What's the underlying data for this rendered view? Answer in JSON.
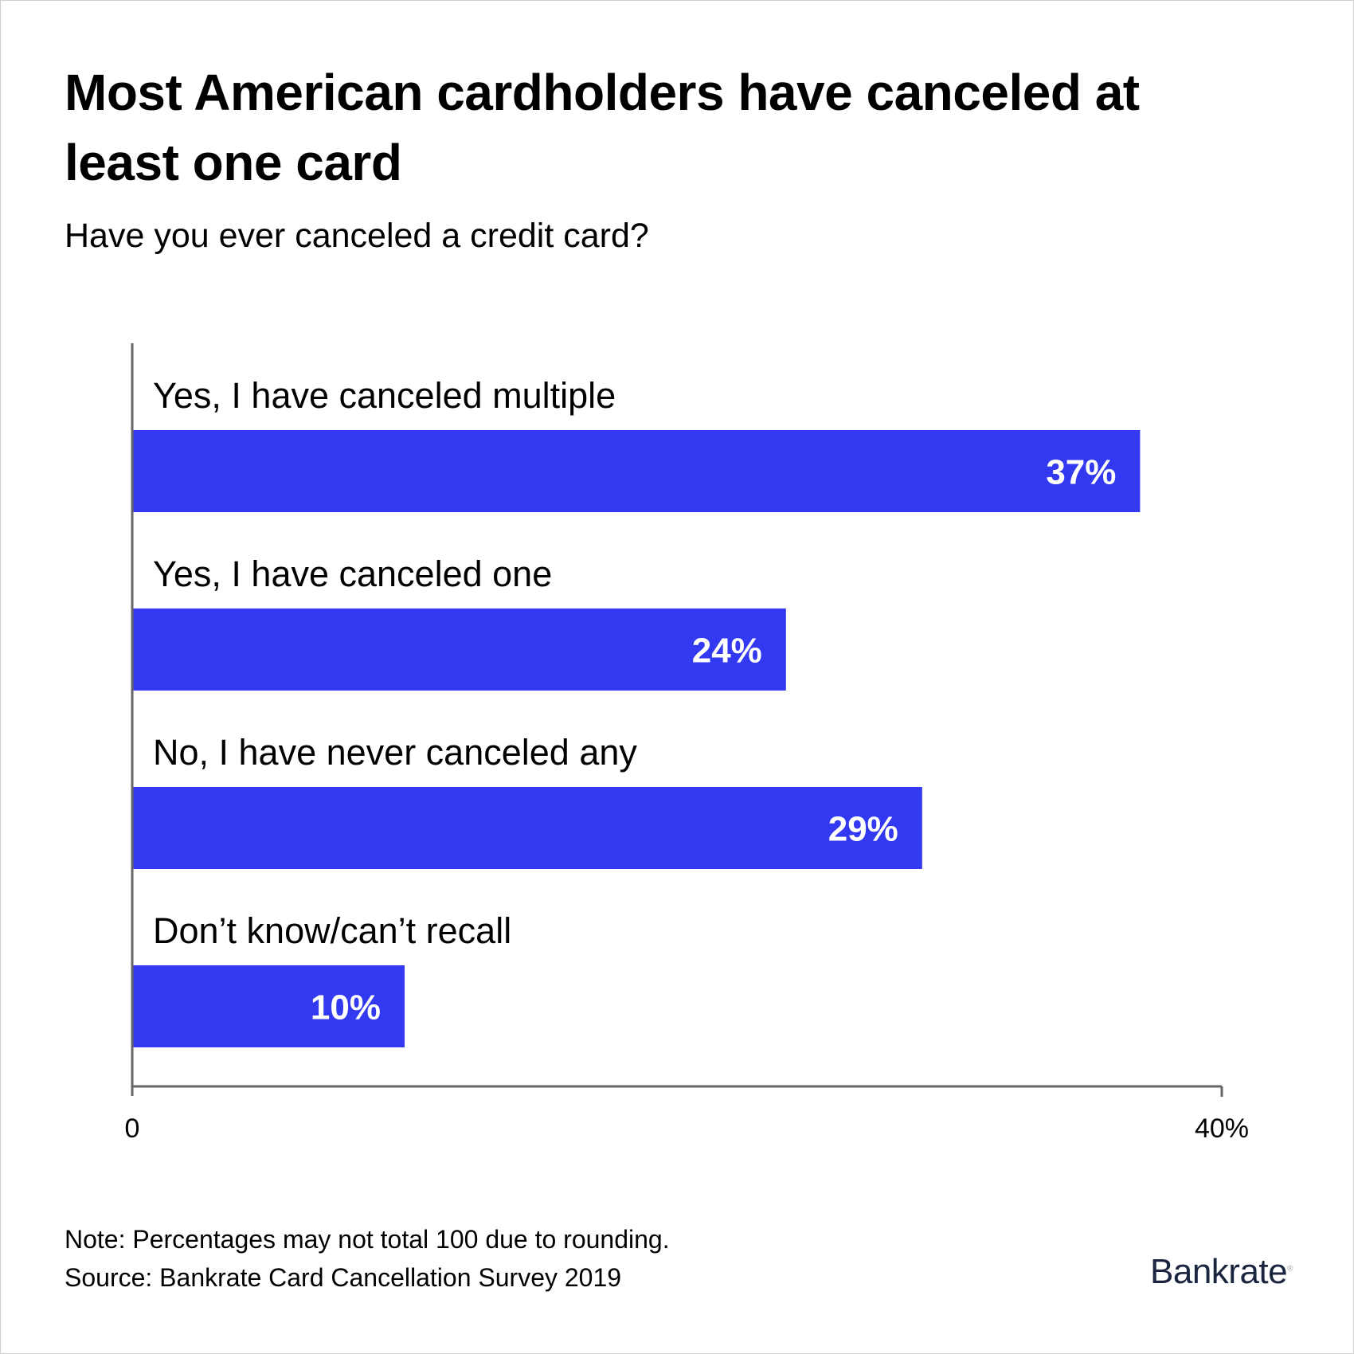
{
  "title": "Most American cardholders have canceled at least one card",
  "subtitle": "Have you ever canceled a credit card?",
  "chart_data": {
    "type": "bar",
    "orientation": "horizontal",
    "categories": [
      "Yes, I have canceled multiple",
      "Yes, I have canceled one",
      "No, I have never canceled any",
      "Don’t know/can’t recall"
    ],
    "values": [
      37,
      24,
      29,
      10
    ],
    "data_labels": [
      "37%",
      "24%",
      "29%",
      "10%"
    ],
    "xlim": [
      0,
      40
    ],
    "tick_labels": [
      "0",
      "40%"
    ],
    "grid": false,
    "bar_color": "#3339f0"
  },
  "note": "Note: Percentages may not total 100 due to rounding.",
  "source": "Source: Bankrate Card Cancellation Survey 2019",
  "logo": "Bankrate"
}
